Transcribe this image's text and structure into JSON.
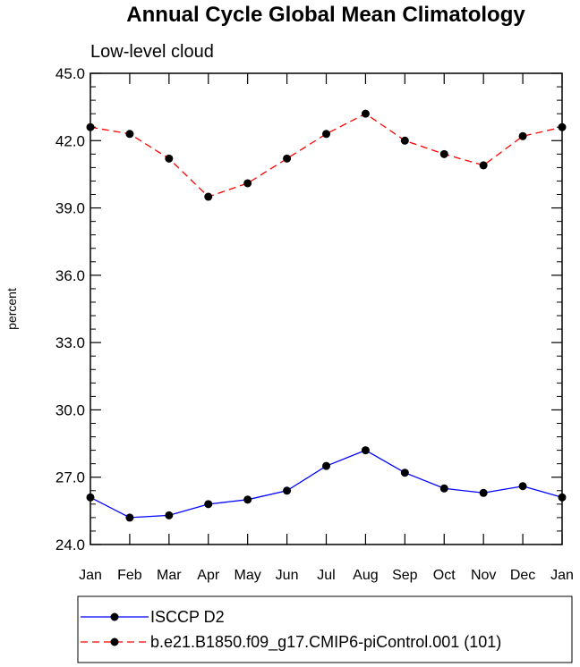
{
  "chart_data": {
    "type": "line",
    "title": "Annual Cycle Global Mean Climatology",
    "subtitle": "Low-level cloud",
    "xlabel": "",
    "ylabel": "percent",
    "categories": [
      "Jan",
      "Feb",
      "Mar",
      "Apr",
      "May",
      "Jun",
      "Jul",
      "Aug",
      "Sep",
      "Oct",
      "Nov",
      "Dec",
      "Jan"
    ],
    "ylim": [
      24.0,
      45.0
    ],
    "yticks": [
      "24.0",
      "27.0",
      "30.0",
      "33.0",
      "36.0",
      "39.0",
      "42.0",
      "45.0"
    ],
    "grid": false,
    "legend_position": "bottom",
    "series": [
      {
        "name": "ISCCP D2",
        "color": "#0000ff",
        "style": "solid",
        "values": [
          26.1,
          25.2,
          25.3,
          25.8,
          26.0,
          26.4,
          27.5,
          28.2,
          27.2,
          26.5,
          26.3,
          26.6,
          26.1
        ]
      },
      {
        "name": "b.e21.B1850.f09_g17.CMIP6-piControl.001 (101)",
        "color": "#ff0000",
        "style": "dashed",
        "values": [
          42.6,
          42.3,
          41.2,
          39.5,
          40.1,
          41.2,
          42.3,
          43.2,
          42.0,
          41.4,
          40.9,
          42.2,
          42.6
        ]
      }
    ]
  }
}
